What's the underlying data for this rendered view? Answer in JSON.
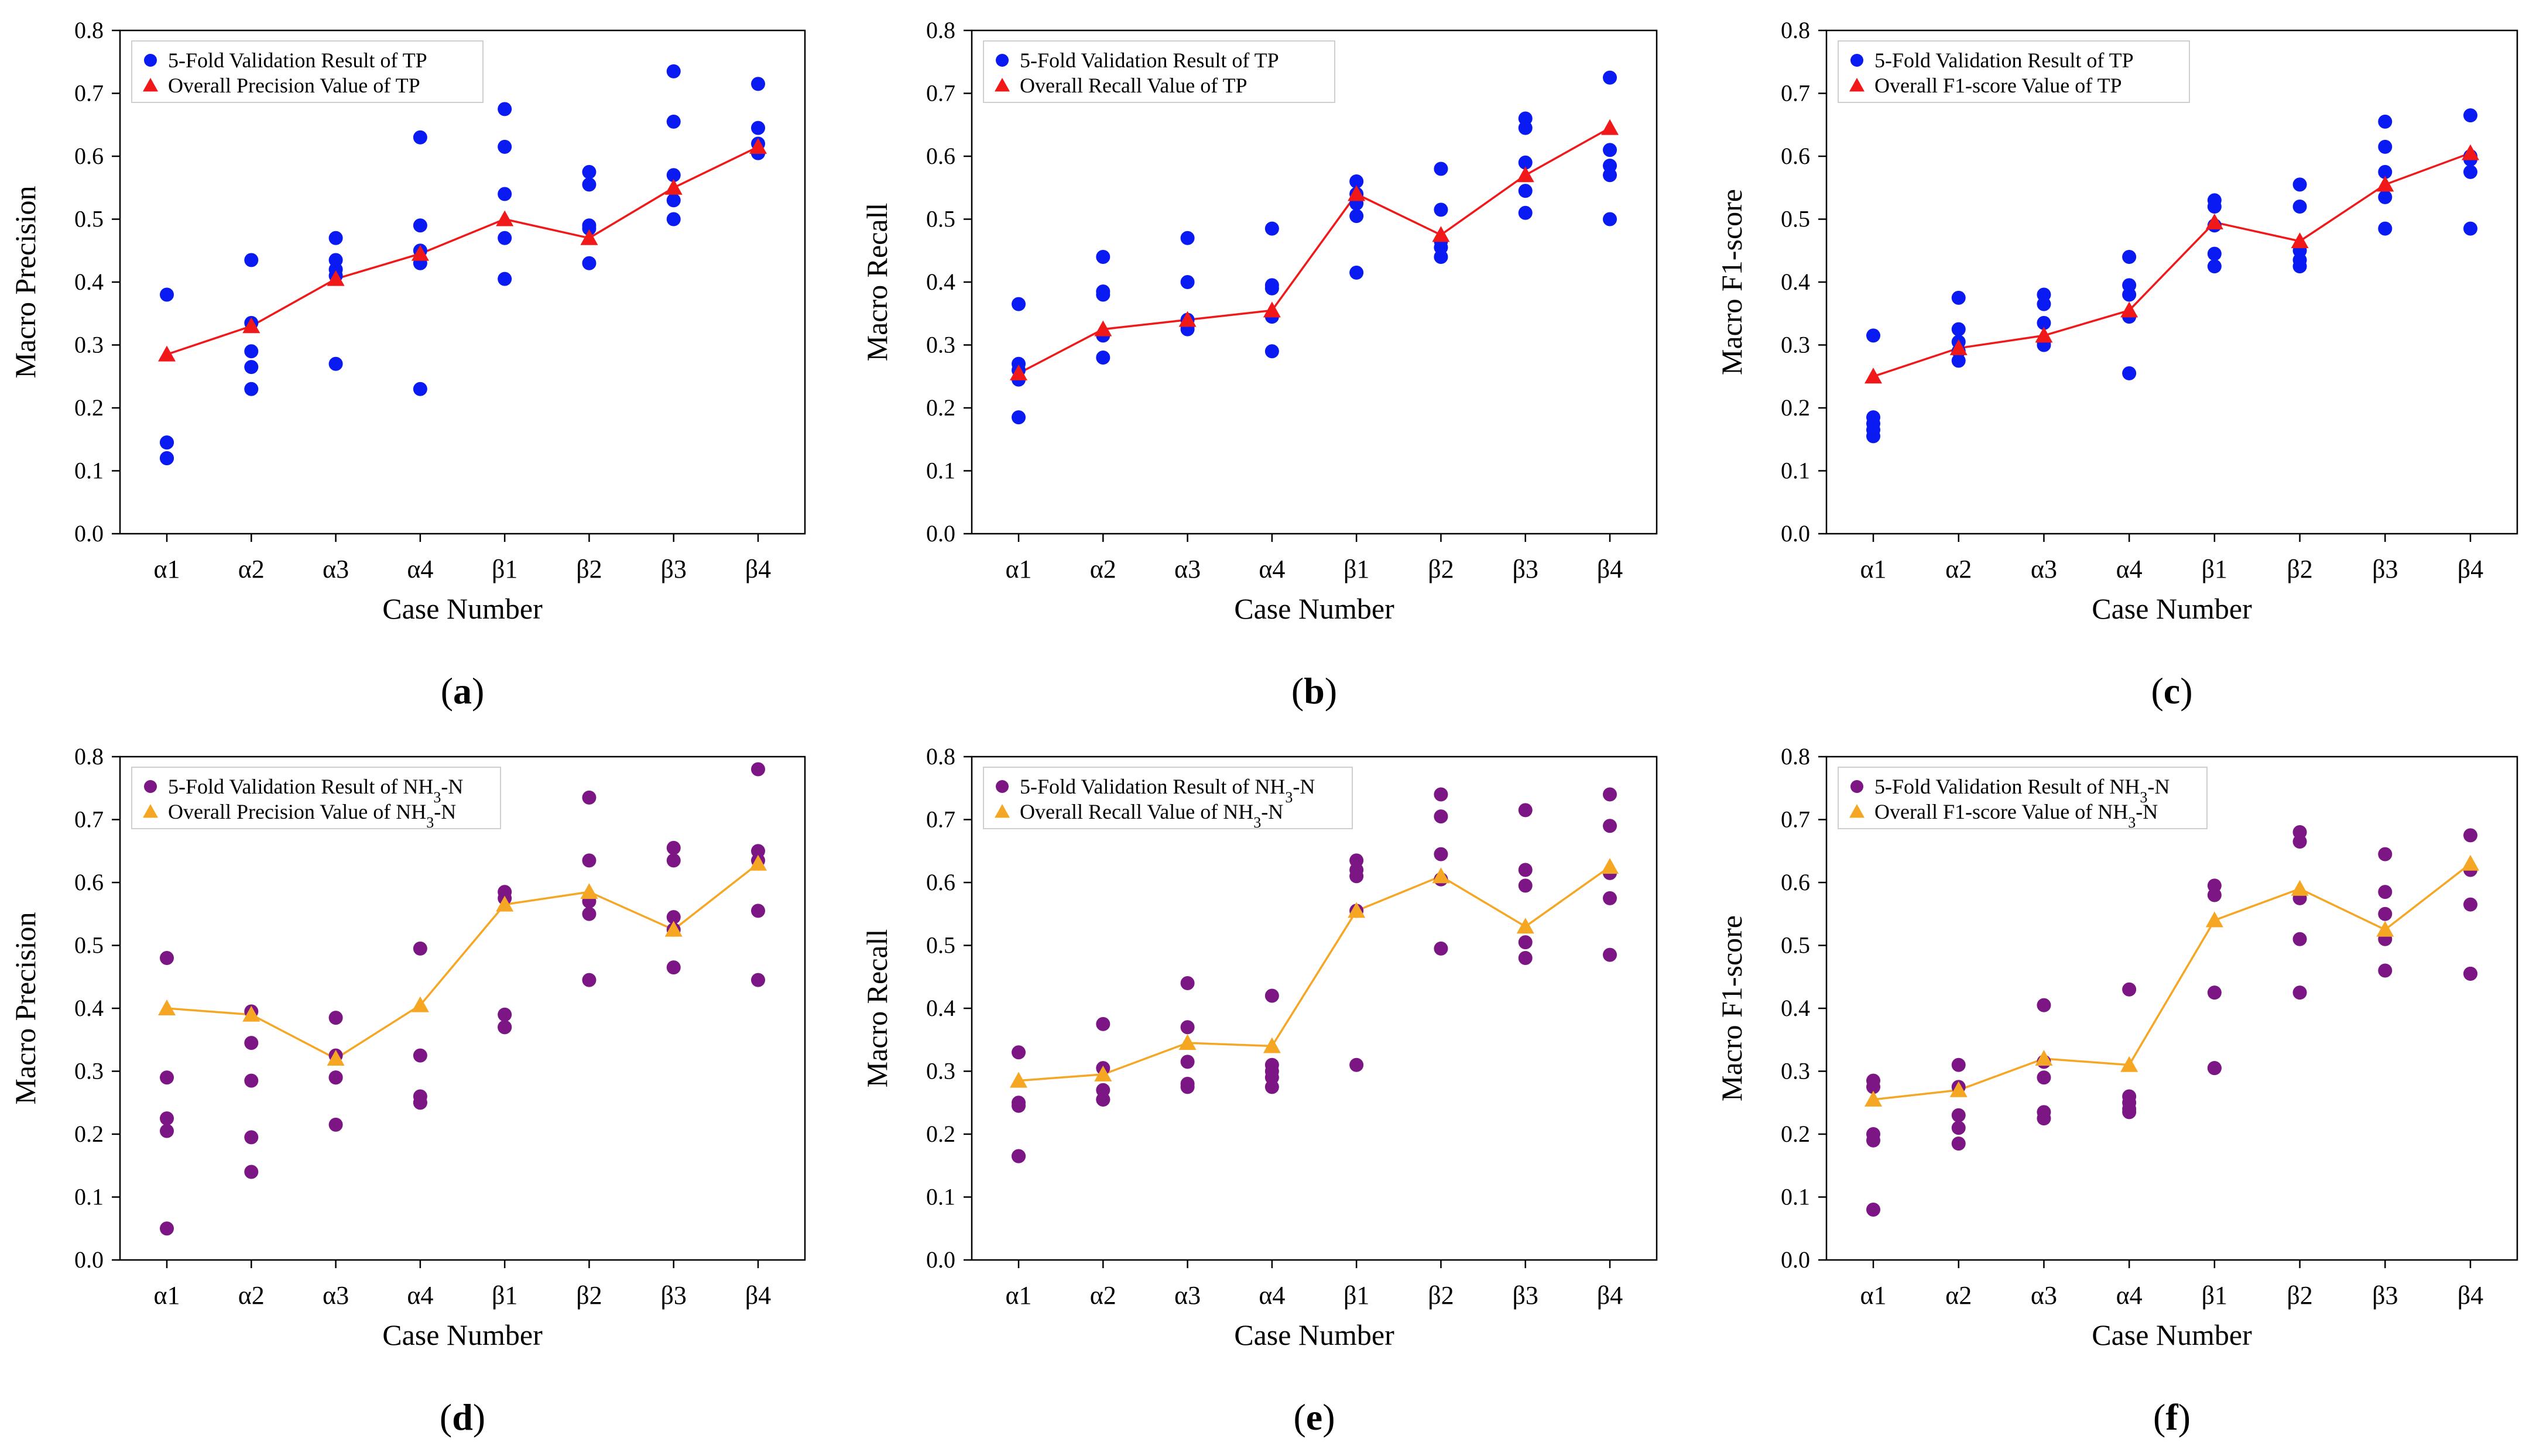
{
  "chart_data": [
    {
      "panel_label": "(a)",
      "type": "scatter",
      "xlabel": "Case Number",
      "ylabel": "Macro Precision",
      "categories": [
        "α1",
        "α2",
        "α3",
        "α4",
        "β1",
        "β2",
        "β3",
        "β4"
      ],
      "ylim": [
        0,
        0.8
      ],
      "yticks": [
        "0.0",
        "0.1",
        "0.2",
        "0.3",
        "0.4",
        "0.5",
        "0.6",
        "0.7",
        "0.8"
      ],
      "legend_position": "top-left",
      "point_color": "#0a1af2",
      "line_color": "#f01818",
      "series": [
        {
          "name": "5-Fold Validation Result of TP",
          "kind": "points",
          "values": [
            [
              0.38,
              0.145,
              0.145,
              0.12,
              0.12
            ],
            [
              0.435,
              0.335,
              0.29,
              0.265,
              0.23
            ],
            [
              0.47,
              0.435,
              0.42,
              0.41,
              0.27
            ],
            [
              0.63,
              0.49,
              0.45,
              0.43,
              0.23
            ],
            [
              0.675,
              0.615,
              0.54,
              0.47,
              0.405
            ],
            [
              0.575,
              0.555,
              0.49,
              0.485,
              0.43
            ],
            [
              0.735,
              0.655,
              0.57,
              0.53,
              0.5
            ],
            [
              0.715,
              0.645,
              0.62,
              0.605,
              0.605
            ]
          ]
        },
        {
          "name": "Overall Precision Value of TP",
          "kind": "line",
          "values": [
            0.285,
            0.33,
            0.405,
            0.445,
            0.5,
            0.47,
            0.55,
            0.615
          ]
        }
      ]
    },
    {
      "panel_label": "(b)",
      "type": "scatter",
      "xlabel": "Case Number",
      "ylabel": "Macro Recall",
      "categories": [
        "α1",
        "α2",
        "α3",
        "α4",
        "β1",
        "β2",
        "β3",
        "β4"
      ],
      "ylim": [
        0,
        0.8
      ],
      "yticks": [
        "0.0",
        "0.1",
        "0.2",
        "0.3",
        "0.4",
        "0.5",
        "0.6",
        "0.7",
        "0.8"
      ],
      "legend_position": "top-left",
      "point_color": "#0a1af2",
      "line_color": "#f01818",
      "series": [
        {
          "name": "5-Fold Validation Result of TP",
          "kind": "points",
          "values": [
            [
              0.365,
              0.27,
              0.26,
              0.245,
              0.185
            ],
            [
              0.44,
              0.385,
              0.38,
              0.315,
              0.28
            ],
            [
              0.47,
              0.4,
              0.34,
              0.33,
              0.325
            ],
            [
              0.485,
              0.395,
              0.39,
              0.345,
              0.29
            ],
            [
              0.56,
              0.54,
              0.525,
              0.505,
              0.415
            ],
            [
              0.58,
              0.515,
              0.465,
              0.455,
              0.44
            ],
            [
              0.66,
              0.645,
              0.59,
              0.545,
              0.51
            ],
            [
              0.725,
              0.61,
              0.585,
              0.57,
              0.5
            ]
          ]
        },
        {
          "name": "Overall Recall Value of TP",
          "kind": "line",
          "values": [
            0.255,
            0.325,
            0.34,
            0.355,
            0.54,
            0.475,
            0.57,
            0.645
          ]
        }
      ]
    },
    {
      "panel_label": "(c)",
      "type": "scatter",
      "xlabel": "Case Number",
      "ylabel": "Macro F1-score",
      "categories": [
        "α1",
        "α2",
        "α3",
        "α4",
        "β1",
        "β2",
        "β3",
        "β4"
      ],
      "ylim": [
        0,
        0.8
      ],
      "yticks": [
        "0.0",
        "0.1",
        "0.2",
        "0.3",
        "0.4",
        "0.5",
        "0.6",
        "0.7",
        "0.8"
      ],
      "legend_position": "top-left",
      "point_color": "#0a1af2",
      "line_color": "#f01818",
      "series": [
        {
          "name": "5-Fold Validation Result of TP",
          "kind": "points",
          "values": [
            [
              0.315,
              0.185,
              0.175,
              0.165,
              0.155
            ],
            [
              0.375,
              0.325,
              0.305,
              0.29,
              0.275
            ],
            [
              0.38,
              0.365,
              0.335,
              0.305,
              0.3
            ],
            [
              0.44,
              0.395,
              0.38,
              0.345,
              0.255
            ],
            [
              0.53,
              0.52,
              0.49,
              0.445,
              0.425
            ],
            [
              0.555,
              0.52,
              0.45,
              0.435,
              0.425
            ],
            [
              0.655,
              0.615,
              0.575,
              0.535,
              0.485
            ],
            [
              0.665,
              0.6,
              0.595,
              0.575,
              0.485
            ]
          ]
        },
        {
          "name": "Overall F1-score Value of TP",
          "kind": "line",
          "values": [
            0.25,
            0.295,
            0.315,
            0.355,
            0.495,
            0.465,
            0.555,
            0.605
          ]
        }
      ]
    },
    {
      "panel_label": "(d)",
      "type": "scatter",
      "xlabel": "Case Number",
      "ylabel": "Macro Precision",
      "categories": [
        "α1",
        "α2",
        "α3",
        "α4",
        "β1",
        "β2",
        "β3",
        "β4"
      ],
      "ylim": [
        0,
        0.8
      ],
      "yticks": [
        "0.0",
        "0.1",
        "0.2",
        "0.3",
        "0.4",
        "0.5",
        "0.6",
        "0.7",
        "0.8"
      ],
      "legend_position": "top-left",
      "point_color": "#7c1685",
      "line_color": "#f5a623",
      "series": [
        {
          "name": "5-Fold Validation Result of NH3-N",
          "kind": "points",
          "values": [
            [
              0.48,
              0.29,
              0.225,
              0.205,
              0.05
            ],
            [
              0.395,
              0.345,
              0.285,
              0.195,
              0.14
            ],
            [
              0.385,
              0.325,
              0.29,
              0.29,
              0.215
            ],
            [
              0.495,
              0.325,
              0.26,
              0.25,
              0.25
            ],
            [
              0.585,
              0.575,
              0.39,
              0.37,
              0.37
            ],
            [
              0.735,
              0.635,
              0.57,
              0.55,
              0.445
            ],
            [
              0.655,
              0.635,
              0.545,
              0.525,
              0.465
            ],
            [
              0.78,
              0.65,
              0.635,
              0.555,
              0.445
            ]
          ]
        },
        {
          "name": "Overall Precision Value of NH3-N",
          "kind": "line",
          "values": [
            0.4,
            0.39,
            0.32,
            0.405,
            0.565,
            0.585,
            0.525,
            0.63
          ]
        }
      ]
    },
    {
      "panel_label": "(e)",
      "type": "scatter",
      "xlabel": "Case Number",
      "ylabel": "Macro Recall",
      "categories": [
        "α1",
        "α2",
        "α3",
        "α4",
        "β1",
        "β2",
        "β3",
        "β4"
      ],
      "ylim": [
        0,
        0.8
      ],
      "yticks": [
        "0.0",
        "0.1",
        "0.2",
        "0.3",
        "0.4",
        "0.5",
        "0.6",
        "0.7",
        "0.8"
      ],
      "legend_position": "top-left",
      "point_color": "#7c1685",
      "line_color": "#f5a623",
      "series": [
        {
          "name": "5-Fold Validation Result of NH3-N",
          "kind": "points",
          "values": [
            [
              0.33,
              0.25,
              0.245,
              0.165,
              0.165
            ],
            [
              0.375,
              0.305,
              0.27,
              0.255,
              0.255
            ],
            [
              0.44,
              0.37,
              0.315,
              0.28,
              0.275
            ],
            [
              0.42,
              0.31,
              0.3,
              0.29,
              0.275
            ],
            [
              0.635,
              0.62,
              0.61,
              0.555,
              0.31
            ],
            [
              0.74,
              0.705,
              0.645,
              0.605,
              0.495
            ],
            [
              0.715,
              0.62,
              0.595,
              0.505,
              0.48
            ],
            [
              0.74,
              0.69,
              0.615,
              0.575,
              0.485
            ]
          ]
        },
        {
          "name": "Overall Recall Value of NH3-N",
          "kind": "line",
          "values": [
            0.285,
            0.295,
            0.345,
            0.34,
            0.555,
            0.61,
            0.53,
            0.625
          ]
        }
      ]
    },
    {
      "panel_label": "(f)",
      "type": "scatter",
      "xlabel": "Case Number",
      "ylabel": "Macro F1-score",
      "categories": [
        "α1",
        "α2",
        "α3",
        "α4",
        "β1",
        "β2",
        "β3",
        "β4"
      ],
      "ylim": [
        0,
        0.8
      ],
      "yticks": [
        "0.0",
        "0.1",
        "0.2",
        "0.3",
        "0.4",
        "0.5",
        "0.6",
        "0.7",
        "0.8"
      ],
      "legend_position": "top-left",
      "point_color": "#7c1685",
      "line_color": "#f5a623",
      "series": [
        {
          "name": "5-Fold Validation Result of NH3-N",
          "kind": "points",
          "values": [
            [
              0.285,
              0.275,
              0.2,
              0.19,
              0.08
            ],
            [
              0.31,
              0.275,
              0.23,
              0.21,
              0.185
            ],
            [
              0.405,
              0.315,
              0.29,
              0.235,
              0.225
            ],
            [
              0.43,
              0.26,
              0.25,
              0.24,
              0.235
            ],
            [
              0.595,
              0.58,
              0.425,
              0.305,
              0.305
            ],
            [
              0.68,
              0.665,
              0.575,
              0.51,
              0.425
            ],
            [
              0.645,
              0.585,
              0.55,
              0.51,
              0.46
            ],
            [
              0.675,
              0.62,
              0.565,
              0.455,
              0.455
            ]
          ]
        },
        {
          "name": "Overall F1-score Value of NH3-N",
          "kind": "line",
          "values": [
            0.255,
            0.27,
            0.32,
            0.31,
            0.54,
            0.59,
            0.525,
            0.63
          ]
        }
      ]
    }
  ]
}
